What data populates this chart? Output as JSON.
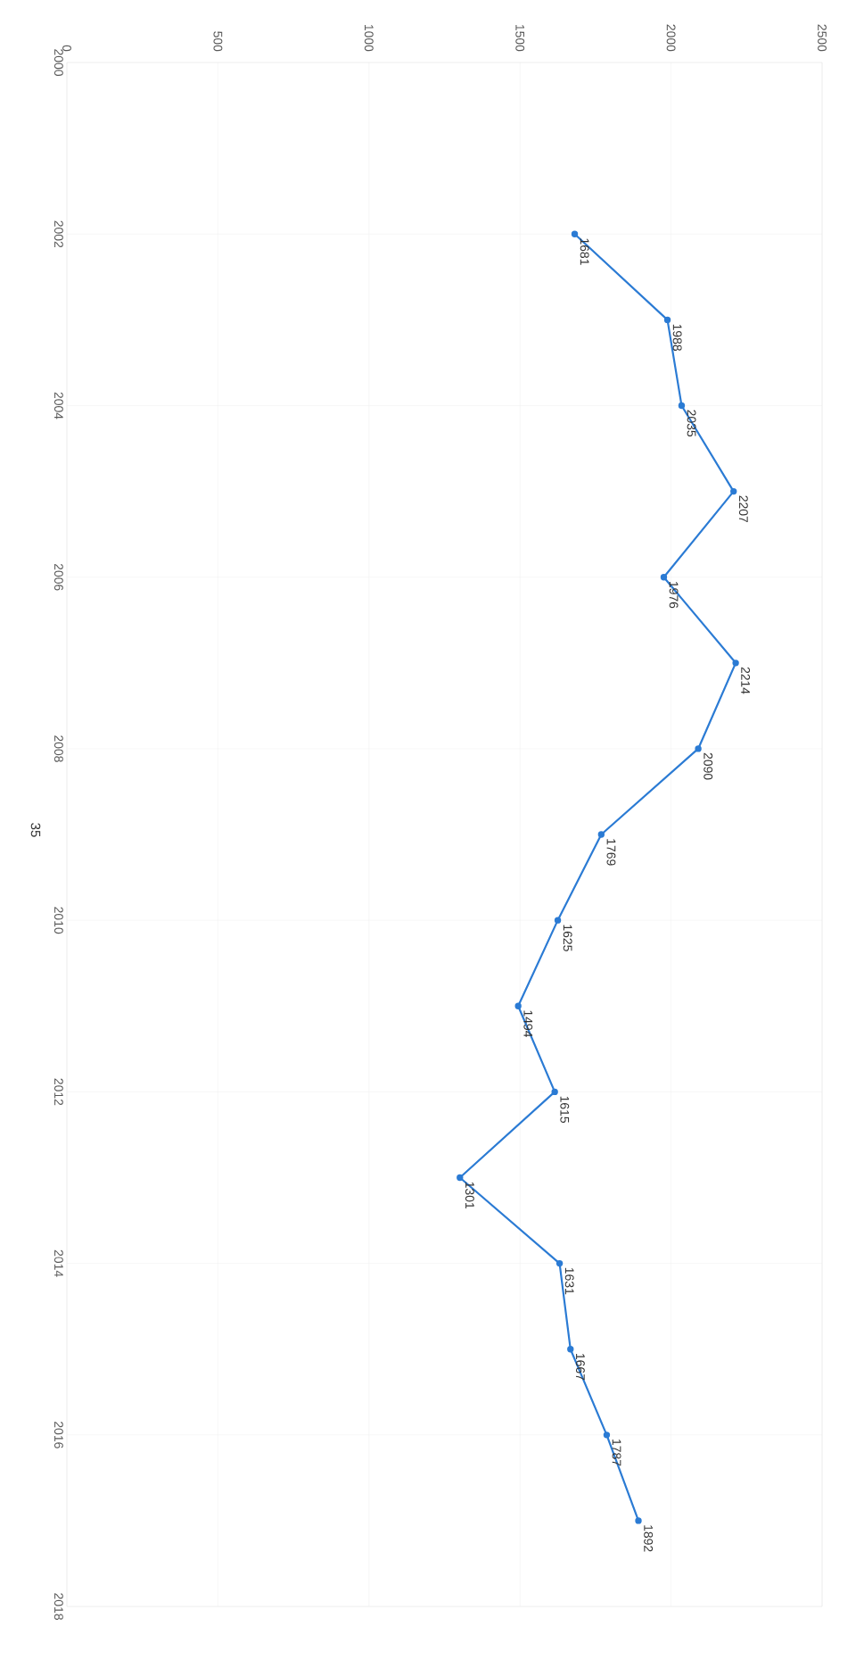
{
  "chart_data": {
    "type": "line",
    "orientation": "horizontal",
    "x": [
      2002,
      2003,
      2004,
      2005,
      2006,
      2007,
      2008,
      2009,
      2010,
      2011,
      2012,
      2013,
      2014,
      2015,
      2016,
      2017
    ],
    "series": [
      {
        "color": "#2b7bd4",
        "values": [
          1681,
          1988,
          2035,
          2207,
          1976,
          2214,
          2090,
          1769,
          1625,
          1494,
          1615,
          1301,
          1631,
          1667,
          1787,
          1892
        ]
      }
    ],
    "xlim": [
      0,
      2500
    ],
    "xticks": [
      0,
      500,
      1000,
      1500,
      2000,
      2500
    ],
    "ylim": [
      2018,
      2000
    ],
    "yticks": [
      2000,
      2002,
      2004,
      2006,
      2008,
      2010,
      2012,
      2014,
      2016,
      2018
    ],
    "grid": true,
    "marker": "circle",
    "line_style": "solid",
    "data_labels": true,
    "annotations": [
      "35"
    ]
  }
}
